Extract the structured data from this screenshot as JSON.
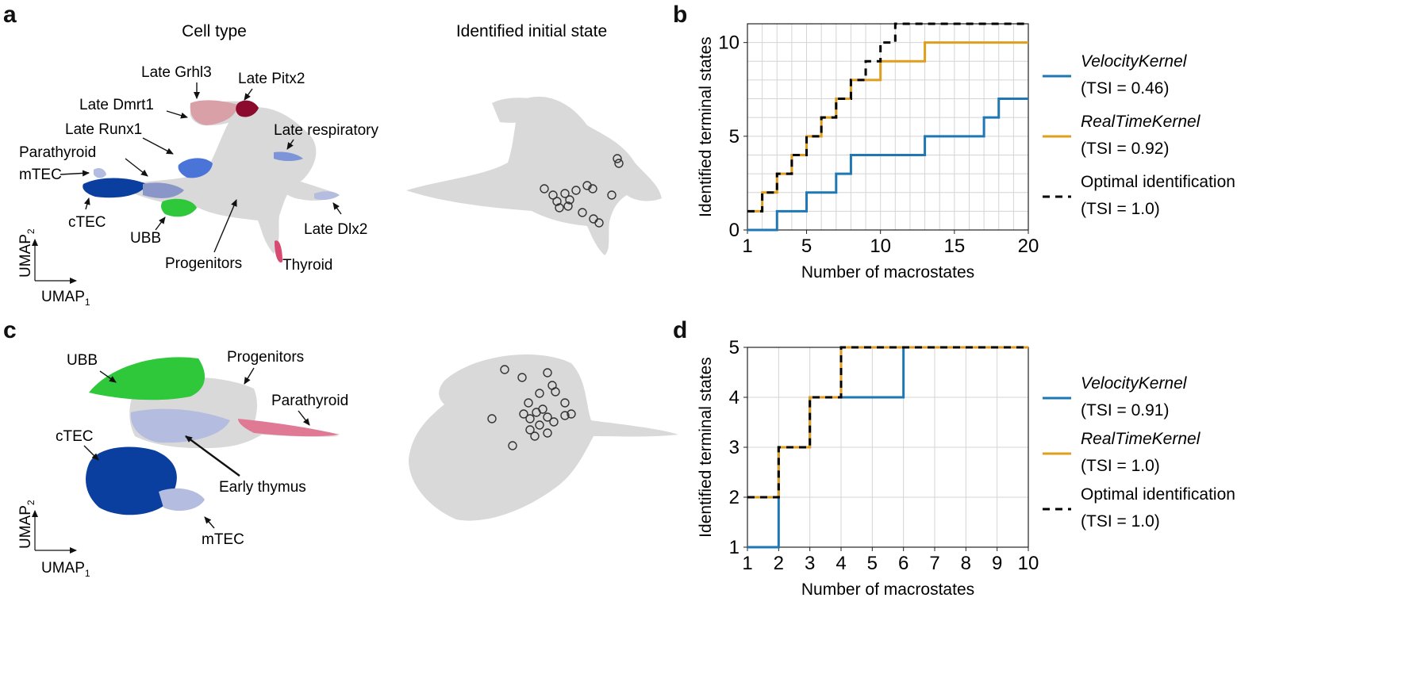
{
  "panels": {
    "a": "a",
    "b": "b",
    "c": "c",
    "d": "d"
  },
  "umap_top": {
    "left_title": "Cell type",
    "right_title": "Identified initial state",
    "labels": {
      "late_grhl3": "Late Grhl3",
      "late_pitx2": "Late Pitx2",
      "late_dmrt1": "Late Dmrt1",
      "late_runx1": "Late Runx1",
      "late_respiratory": "Late respiratory",
      "parathyroid": "Parathyroid",
      "mtec": "mTEC",
      "ctec": "cTEC",
      "ubb": "UBB",
      "late_dlx2": "Late Dlx2",
      "progenitors": "Progenitors",
      "thyroid": "Thyroid"
    }
  },
  "umap_bottom": {
    "labels": {
      "ubb": "UBB",
      "progenitors": "Progenitors",
      "parathyroid": "Parathyroid",
      "ctec": "cTEC",
      "early_thymus": "Early thymus",
      "mtec": "mTEC"
    }
  },
  "axes_glyph": {
    "umap": "UMAP",
    "sub1": "1",
    "sub2": "2"
  },
  "colors": {
    "velocity": "#1f77b4",
    "realtime": "#e09e1f",
    "optimal": "#000000",
    "grey_cells": "#d9d9d9",
    "ctec": "#0a3fa0",
    "ubb": "#2ec83a",
    "runx1": "#4a74d8",
    "pitx2": "#8b0a2e",
    "grhl3": "#d9a0a8",
    "thyroid": "#d94a73",
    "mtec": "#b4bce0",
    "parathyroid_bottom": "#e07a94"
  },
  "chart_data": [
    {
      "type": "line",
      "step": "post",
      "panel": "b",
      "xlabel": "Number of macrostates",
      "ylabel": "Identified terminal states",
      "xlim": [
        1,
        20
      ],
      "ylim": [
        0,
        11
      ],
      "xticks": [
        1,
        5,
        10,
        15,
        20
      ],
      "yticks": [
        0,
        5,
        10
      ],
      "grid": true,
      "legend_position": "right",
      "series": [
        {
          "name": "VelocityKernel",
          "tsi": "(TSI = 0.46)",
          "x": [
            1,
            2,
            3,
            4,
            5,
            6,
            7,
            8,
            9,
            10,
            11,
            12,
            13,
            14,
            15,
            16,
            17,
            18,
            19,
            20
          ],
          "values": [
            0,
            0,
            1,
            1,
            2,
            2,
            3,
            4,
            4,
            4,
            4,
            4,
            5,
            5,
            5,
            5,
            6,
            7,
            7,
            7
          ]
        },
        {
          "name": "RealTimeKernel",
          "tsi": "(TSI = 0.92)",
          "x": [
            1,
            2,
            3,
            4,
            5,
            6,
            7,
            8,
            9,
            10,
            11,
            12,
            13,
            14,
            15,
            16,
            17,
            18,
            19,
            20
          ],
          "values": [
            1,
            2,
            3,
            4,
            5,
            6,
            7,
            8,
            8,
            9,
            9,
            9,
            10,
            10,
            10,
            10,
            10,
            10,
            10,
            10
          ]
        },
        {
          "name": "Optimal identification",
          "tsi": "(TSI = 1.0)",
          "x": [
            1,
            2,
            3,
            4,
            5,
            6,
            7,
            8,
            9,
            10,
            11,
            12,
            13,
            14,
            15,
            16,
            17,
            18,
            19,
            20
          ],
          "values": [
            1,
            2,
            3,
            4,
            5,
            6,
            7,
            8,
            9,
            10,
            11,
            11,
            11,
            11,
            11,
            11,
            11,
            11,
            11,
            11
          ]
        }
      ]
    },
    {
      "type": "line",
      "step": "post",
      "panel": "d",
      "xlabel": "Number of macrostates",
      "ylabel": "Identified terminal states",
      "xlim": [
        1,
        10
      ],
      "ylim": [
        1,
        5
      ],
      "xticks": [
        1,
        2,
        3,
        4,
        5,
        6,
        7,
        8,
        9,
        10
      ],
      "yticks": [
        1,
        2,
        3,
        4,
        5
      ],
      "grid": true,
      "legend_position": "right",
      "series": [
        {
          "name": "VelocityKernel",
          "tsi": "(TSI = 0.91)",
          "x": [
            1,
            2,
            3,
            4,
            5,
            6,
            7,
            8,
            9,
            10
          ],
          "values": [
            1,
            3,
            4,
            4,
            4,
            5,
            5,
            5,
            5,
            5
          ]
        },
        {
          "name": "RealTimeKernel",
          "tsi": "(TSI = 1.0)",
          "x": [
            1,
            2,
            3,
            4,
            5,
            6,
            7,
            8,
            9,
            10
          ],
          "values": [
            2,
            3,
            4,
            5,
            5,
            5,
            5,
            5,
            5,
            5
          ]
        },
        {
          "name": "Optimal identification",
          "tsi": "(TSI = 1.0)",
          "x": [
            1,
            2,
            3,
            4,
            5,
            6,
            7,
            8,
            9,
            10
          ],
          "values": [
            2,
            3,
            4,
            5,
            5,
            5,
            5,
            5,
            5,
            5
          ]
        }
      ]
    }
  ]
}
